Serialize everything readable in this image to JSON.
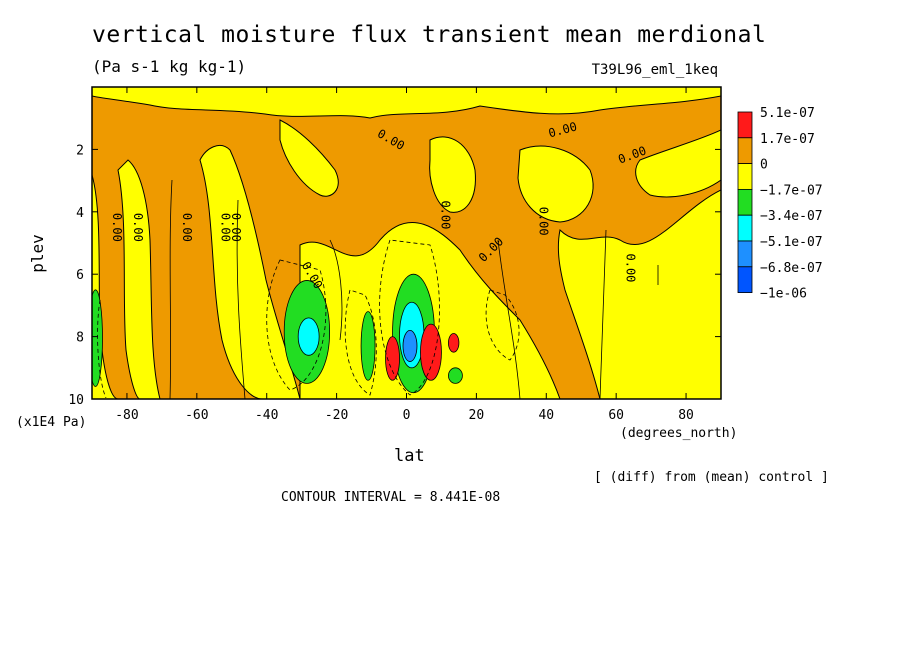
{
  "chart_data": {
    "type": "heatmap",
    "title": "vertical moisture flux transient mean merdional",
    "units": "(Pa s-1 kg kg-1)",
    "experiment": "T39L96_eml_1keq",
    "xlabel": "lat",
    "x_unit_label": "(degrees_north)",
    "ylabel": "plev",
    "y_multiplier_label": "(x1E4 Pa)",
    "xlim": [
      -90,
      90
    ],
    "ylim": [
      0,
      10
    ],
    "y_inverted": true,
    "x_ticks": [
      "-80",
      "-60",
      "-40",
      "-20",
      "0",
      "20",
      "40",
      "60",
      "80"
    ],
    "x_tick_values": [
      -80,
      -60,
      -40,
      -20,
      0,
      20,
      40,
      60,
      80
    ],
    "y_ticks": [
      "2",
      "4",
      "6",
      "8",
      "10"
    ],
    "y_tick_values": [
      2,
      4,
      6,
      8,
      10
    ],
    "note": "[ (diff) from (mean) control ]",
    "contour_interval": "CONTOUR INTERVAL = 8.441E-08",
    "contour_label": "0.00",
    "legend": {
      "placement": "right",
      "labels": [
        "5.1e-07",
        "1.7e-07",
        "0",
        "−1.7e-07",
        "−3.4e-07",
        "−5.1e-07",
        "−6.8e-07",
        "−1e-06"
      ],
      "colors": [
        "#ff1a1a",
        "#ee9a00",
        "#ffff00",
        "#22dd22",
        "#00ffff",
        "#1e90ff",
        "#0055ff"
      ]
    },
    "regions": [
      {
        "level": "-1.7e-07",
        "color": "#22dd22",
        "lat": [
          -91,
          -87
        ],
        "plev": [
          6.5,
          9.6
        ]
      },
      {
        "level": "-1.7e-07",
        "color": "#22dd22",
        "lat": [
          -35,
          -22
        ],
        "plev": [
          6.2,
          9.5
        ]
      },
      {
        "level": "-3.4e-07",
        "color": "#00ffff",
        "lat": [
          -31,
          -25
        ],
        "plev": [
          7.4,
          8.6
        ]
      },
      {
        "level": "-1.7e-07",
        "color": "#22dd22",
        "lat": [
          -13,
          -9
        ],
        "plev": [
          7.2,
          9.4
        ]
      },
      {
        "level": "-1.7e-07",
        "color": "#22dd22",
        "lat": [
          -4,
          8
        ],
        "plev": [
          6.0,
          9.8
        ]
      },
      {
        "level": "-3.4e-07",
        "color": "#00ffff",
        "lat": [
          -2,
          5
        ],
        "plev": [
          6.9,
          9.0
        ]
      },
      {
        "level": "-5.1e-07",
        "color": "#1e90ff",
        "lat": [
          -1,
          3
        ],
        "plev": [
          7.8,
          8.8
        ]
      },
      {
        "level": "1.7e-07",
        "color": "#ff1a1a",
        "lat": [
          4,
          10
        ],
        "plev": [
          7.6,
          9.4
        ]
      },
      {
        "level": "1.7e-07",
        "color": "#ff1a1a",
        "lat": [
          12,
          15
        ],
        "plev": [
          7.9,
          8.5
        ]
      },
      {
        "level": "1.7e-07",
        "color": "#ff1a1a",
        "lat": [
          -6,
          -2
        ],
        "plev": [
          8.0,
          9.4
        ]
      },
      {
        "level": "-1.7e-07",
        "color": "#22dd22",
        "lat": [
          12,
          16
        ],
        "plev": [
          9.0,
          9.5
        ]
      }
    ]
  }
}
